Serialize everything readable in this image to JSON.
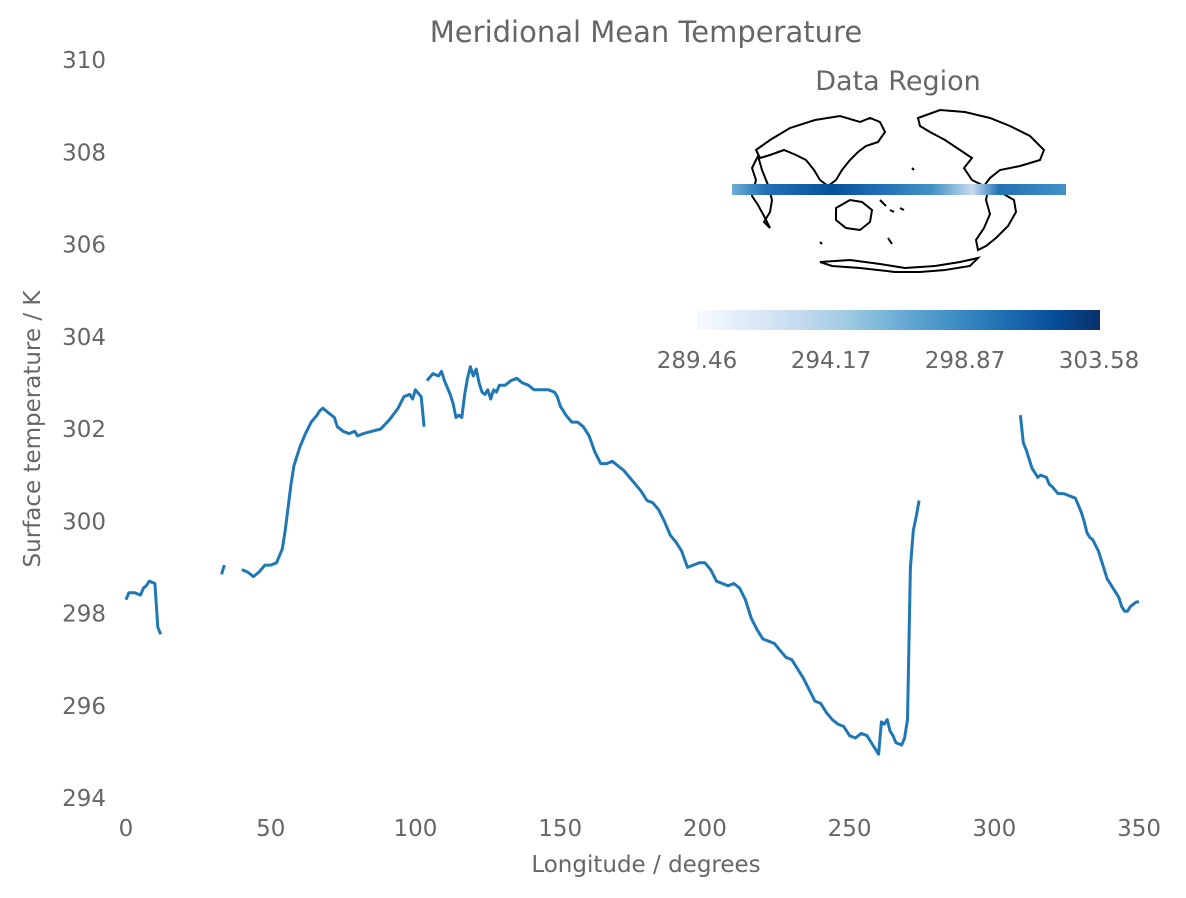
{
  "chart_data": {
    "type": "line",
    "title": "Meridional Mean Temperature",
    "xlabel": "Longitude / degrees",
    "ylabel": "Surface temperature / K",
    "xlim": [
      0,
      360
    ],
    "ylim": [
      294,
      310
    ],
    "xticks": [
      0,
      50,
      100,
      150,
      200,
      250,
      300,
      350
    ],
    "yticks": [
      294,
      296,
      298,
      300,
      302,
      304,
      306,
      308,
      310
    ],
    "grid": false,
    "line_color": "#1f77b4",
    "series": [
      {
        "segments": [
          [
            [
              0,
              298.3
            ],
            [
              1,
              298.45
            ],
            [
              3,
              298.45
            ],
            [
              5,
              298.4
            ],
            [
              6,
              298.55
            ],
            [
              7,
              298.6
            ],
            [
              8,
              298.7
            ],
            [
              10,
              298.65
            ],
            [
              11,
              297.7
            ],
            [
              12,
              297.55
            ]
          ],
          [
            [
              33,
              298.85
            ],
            [
              34,
              299.05
            ]
          ],
          [
            [
              40,
              298.95
            ],
            [
              42,
              298.9
            ],
            [
              44,
              298.8
            ],
            [
              46,
              298.9
            ],
            [
              48,
              299.05
            ],
            [
              50,
              299.05
            ],
            [
              52,
              299.1
            ],
            [
              54,
              299.4
            ],
            [
              55,
              299.8
            ],
            [
              56,
              300.3
            ],
            [
              57,
              300.8
            ],
            [
              58,
              301.2
            ],
            [
              60,
              301.6
            ],
            [
              62,
              301.9
            ],
            [
              64,
              302.15
            ],
            [
              66,
              302.3
            ],
            [
              67,
              302.4
            ],
            [
              68,
              302.45
            ],
            [
              70,
              302.35
            ],
            [
              72,
              302.25
            ],
            [
              73,
              302.05
            ],
            [
              75,
              301.95
            ],
            [
              77,
              301.9
            ],
            [
              79,
              301.95
            ],
            [
              80,
              301.85
            ],
            [
              82,
              301.9
            ],
            [
              85,
              301.95
            ],
            [
              88,
              302.0
            ],
            [
              91,
              302.2
            ],
            [
              94,
              302.45
            ],
            [
              96,
              302.7
            ],
            [
              98,
              302.75
            ],
            [
              99,
              302.65
            ],
            [
              100,
              302.85
            ],
            [
              102,
              302.7
            ],
            [
              103,
              302.05
            ]
          ],
          [
            [
              104,
              303.05
            ],
            [
              106,
              303.2
            ],
            [
              108,
              303.15
            ],
            [
              109,
              303.25
            ],
            [
              110,
              303.05
            ],
            [
              111,
              302.9
            ],
            [
              112,
              302.75
            ],
            [
              113,
              302.55
            ],
            [
              114,
              302.25
            ],
            [
              115,
              302.3
            ],
            [
              116,
              302.25
            ],
            [
              117,
              302.75
            ],
            [
              118,
              303.1
            ],
            [
              119,
              303.35
            ],
            [
              120,
              303.15
            ],
            [
              121,
              303.3
            ],
            [
              122,
              303.0
            ],
            [
              123,
              302.8
            ],
            [
              124,
              302.75
            ],
            [
              125,
              302.85
            ],
            [
              126,
              302.65
            ],
            [
              127,
              302.85
            ],
            [
              128,
              302.8
            ],
            [
              129,
              302.95
            ],
            [
              131,
              302.95
            ],
            [
              133,
              303.05
            ],
            [
              135,
              303.1
            ],
            [
              137,
              303.0
            ],
            [
              139,
              302.95
            ],
            [
              141,
              302.85
            ],
            [
              144,
              302.85
            ],
            [
              146,
              302.85
            ],
            [
              148,
              302.8
            ],
            [
              149,
              302.7
            ],
            [
              150,
              302.5
            ],
            [
              152,
              302.3
            ],
            [
              154,
              302.15
            ],
            [
              156,
              302.15
            ],
            [
              158,
              302.05
            ],
            [
              160,
              301.85
            ],
            [
              162,
              301.5
            ],
            [
              164,
              301.25
            ],
            [
              166,
              301.25
            ],
            [
              168,
              301.3
            ],
            [
              170,
              301.2
            ],
            [
              172,
              301.1
            ],
            [
              174,
              300.95
            ],
            [
              176,
              300.8
            ],
            [
              178,
              300.65
            ],
            [
              180,
              300.45
            ],
            [
              182,
              300.4
            ],
            [
              184,
              300.25
            ],
            [
              186,
              300.0
            ],
            [
              188,
              299.7
            ],
            [
              190,
              299.55
            ],
            [
              192,
              299.35
            ],
            [
              194,
              299.0
            ],
            [
              196,
              299.05
            ],
            [
              198,
              299.1
            ],
            [
              200,
              299.1
            ],
            [
              202,
              298.95
            ],
            [
              204,
              298.7
            ],
            [
              206,
              298.65
            ],
            [
              208,
              298.6
            ],
            [
              210,
              298.65
            ],
            [
              212,
              298.55
            ],
            [
              214,
              298.3
            ],
            [
              216,
              297.9
            ],
            [
              218,
              297.65
            ],
            [
              220,
              297.45
            ],
            [
              222,
              297.4
            ],
            [
              224,
              297.35
            ],
            [
              226,
              297.2
            ],
            [
              228,
              297.05
            ],
            [
              230,
              297.0
            ],
            [
              232,
              296.8
            ],
            [
              234,
              296.6
            ],
            [
              236,
              296.35
            ],
            [
              238,
              296.1
            ],
            [
              240,
              296.05
            ],
            [
              242,
              295.85
            ],
            [
              244,
              295.7
            ],
            [
              246,
              295.6
            ],
            [
              248,
              295.55
            ],
            [
              250,
              295.35
            ],
            [
              252,
              295.3
            ],
            [
              254,
              295.4
            ],
            [
              256,
              295.35
            ],
            [
              258,
              295.15
            ],
            [
              259,
              295.05
            ],
            [
              260,
              294.95
            ],
            [
              261,
              295.65
            ],
            [
              262,
              295.6
            ],
            [
              263,
              295.7
            ],
            [
              264,
              295.45
            ],
            [
              265,
              295.35
            ],
            [
              266,
              295.2
            ],
            [
              268,
              295.15
            ],
            [
              269,
              295.3
            ],
            [
              270,
              295.7
            ],
            [
              271,
              299.0
            ],
            [
              272,
              299.8
            ],
            [
              273,
              300.1
            ],
            [
              274,
              300.45
            ]
          ],
          [
            [
              309,
              302.3
            ],
            [
              310,
              301.7
            ],
            [
              311,
              301.55
            ],
            [
              312,
              301.35
            ],
            [
              313,
              301.15
            ],
            [
              314,
              301.05
            ],
            [
              315,
              300.95
            ],
            [
              316,
              301.0
            ],
            [
              318,
              300.95
            ],
            [
              319,
              300.8
            ],
            [
              320,
              300.75
            ],
            [
              322,
              300.6
            ],
            [
              324,
              300.6
            ],
            [
              326,
              300.55
            ],
            [
              328,
              300.5
            ],
            [
              329,
              300.35
            ],
            [
              330,
              300.2
            ],
            [
              331,
              300.0
            ],
            [
              332,
              299.75
            ],
            [
              333,
              299.65
            ],
            [
              334,
              299.6
            ],
            [
              336,
              299.35
            ],
            [
              337,
              299.15
            ],
            [
              338,
              298.95
            ],
            [
              339,
              298.75
            ],
            [
              340,
              298.65
            ],
            [
              341,
              298.55
            ],
            [
              342,
              298.45
            ],
            [
              343,
              298.35
            ],
            [
              344,
              298.15
            ],
            [
              345,
              298.05
            ],
            [
              346,
              298.05
            ],
            [
              347,
              298.15
            ],
            [
              348,
              298.2
            ],
            [
              349,
              298.25
            ],
            [
              350,
              298.25
            ]
          ]
        ]
      }
    ],
    "inset": {
      "title": "Data Region",
      "content": "world map with data band along the equatorial region",
      "colormap": [
        "#f7fbff",
        "#deebf7",
        "#c6dbef",
        "#9ecae1",
        "#6baed6",
        "#4292c6",
        "#2171b5",
        "#08519c",
        "#08306b"
      ],
      "colorbar_ticks": [
        "289.46",
        "294.17",
        "298.87",
        "303.58"
      ]
    }
  }
}
